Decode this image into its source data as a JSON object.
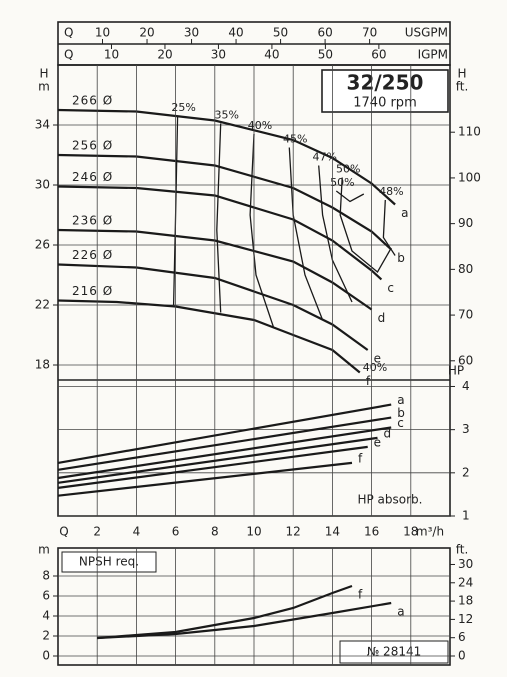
{
  "header": {
    "title": "32/250",
    "speed": "1740 rpm",
    "number": "№ 28141"
  },
  "chart_data": [
    {
      "type": "line",
      "x_label": "Q",
      "y_label": "H",
      "y_unit": "m",
      "y2_label": "H",
      "y2_unit": "ft.",
      "xlim": [
        0,
        20
      ],
      "ylim": [
        17,
        38
      ],
      "yticks": [
        18,
        22,
        26,
        30,
        34
      ],
      "y2lim": [
        55.8,
        124.7
      ],
      "y2ticks": [
        60,
        70,
        80,
        90,
        100,
        110
      ],
      "top_axes": [
        {
          "quantity": "Q",
          "label": "USGPM",
          "lim": [
            0,
            88.06
          ],
          "ticks": [
            10,
            20,
            30,
            40,
            50,
            60,
            70
          ]
        },
        {
          "quantity": "Q",
          "label": "IGPM",
          "lim": [
            0,
            73.3
          ],
          "ticks": [
            10,
            20,
            30,
            40,
            50,
            60
          ]
        }
      ],
      "series": [
        {
          "name": "a",
          "diameter": "266 Ø",
          "color": "#1a1a1a",
          "x": [
            0,
            4,
            8,
            12,
            14,
            16,
            17.2
          ],
          "values": [
            35,
            34.9,
            34.3,
            33,
            31.8,
            30.1,
            28.7
          ]
        },
        {
          "name": "b",
          "diameter": "256 Ø",
          "color": "#1a1a1a",
          "x": [
            0,
            4,
            8,
            12,
            14,
            16,
            17
          ],
          "values": [
            32,
            31.9,
            31.3,
            29.8,
            28.5,
            26.9,
            25.7
          ]
        },
        {
          "name": "c",
          "diameter": "246 Ø",
          "color": "#1a1a1a",
          "x": [
            0,
            4,
            8,
            12,
            14,
            16,
            16.5
          ],
          "values": [
            29.9,
            29.8,
            29.3,
            27.7,
            26.3,
            24.3,
            23.7
          ]
        },
        {
          "name": "d",
          "diameter": "236 Ø",
          "color": "#1a1a1a",
          "x": [
            0,
            4,
            8,
            12,
            14,
            16
          ],
          "values": [
            27,
            26.9,
            26.3,
            24.9,
            23.5,
            21.7
          ]
        },
        {
          "name": "e",
          "diameter": "226 Ø",
          "color": "#1a1a1a",
          "x": [
            0,
            4,
            8,
            12,
            14,
            15.8
          ],
          "values": [
            24.7,
            24.5,
            23.8,
            22,
            20.7,
            19
          ]
        },
        {
          "name": "f",
          "diameter": "216 Ø",
          "color": "#1a1a1a",
          "x": [
            0,
            3,
            6,
            10,
            12,
            14,
            15.4
          ],
          "values": [
            22.3,
            22.2,
            21.9,
            21,
            20,
            19,
            17.5
          ]
        }
      ],
      "efficiency_curves": [
        {
          "label": "25%",
          "x": [
            6.1,
            6,
            5.9
          ],
          "y": [
            34.6,
            28,
            22
          ]
        },
        {
          "label": "35%",
          "x": [
            8.3,
            8.1,
            8.3
          ],
          "y": [
            34.1,
            27,
            21.5
          ]
        },
        {
          "label": "40%",
          "x": [
            10,
            9.8,
            10.1,
            11
          ],
          "y": [
            33.4,
            28,
            24,
            20.5
          ]
        },
        {
          "label": "45%",
          "x": [
            11.8,
            12,
            12.6,
            13.5
          ],
          "y": [
            32.5,
            28,
            24,
            21
          ]
        },
        {
          "label": "47%",
          "x": [
            13.3,
            13.5,
            14,
            15
          ],
          "y": [
            31.3,
            28,
            25,
            22.2
          ]
        },
        {
          "label": "50%",
          "x": [
            14.5,
            14.4,
            15,
            16.3,
            17
          ],
          "y": [
            30.5,
            28,
            25.6,
            24.2,
            25.8
          ]
        },
        {
          "label": "50%",
          "x": [
            14.2,
            14.9,
            15.6
          ],
          "y": [
            29.6,
            28.9,
            29.4
          ]
        },
        {
          "label": "48%",
          "x": [
            16.7,
            16.6,
            17.2
          ],
          "y": [
            29,
            26.5,
            25.3
          ]
        }
      ],
      "annotations": [
        "40%"
      ]
    },
    {
      "type": "line",
      "x_label": "Q",
      "x_unit": "m³/h",
      "y_label": "HP",
      "note": "HP absorb.",
      "xlim": [
        0,
        20
      ],
      "xticks": [
        2,
        4,
        6,
        8,
        10,
        12,
        14,
        16,
        18
      ],
      "ylim": [
        1,
        4.15
      ],
      "yticks": [
        1,
        2,
        3,
        4
      ],
      "series": [
        {
          "name": "a",
          "color": "#1a1a1a",
          "x": [
            0,
            17
          ],
          "values": [
            2.23,
            3.58
          ]
        },
        {
          "name": "b",
          "color": "#1a1a1a",
          "x": [
            0,
            17
          ],
          "values": [
            2.07,
            3.28
          ]
        },
        {
          "name": "c",
          "color": "#1a1a1a",
          "x": [
            0,
            17
          ],
          "values": [
            1.88,
            3.05
          ]
        },
        {
          "name": "d",
          "color": "#1a1a1a",
          "x": [
            0,
            16.3
          ],
          "values": [
            1.77,
            2.81
          ]
        },
        {
          "name": "e",
          "color": "#1a1a1a",
          "x": [
            0,
            15.8
          ],
          "values": [
            1.65,
            2.6
          ]
        },
        {
          "name": "f",
          "color": "#1a1a1a",
          "x": [
            0,
            15
          ],
          "values": [
            1.47,
            2.23
          ]
        }
      ]
    },
    {
      "type": "line",
      "title": "NPSH req.",
      "y_label": "m",
      "y2_label": "ft.",
      "xlim": [
        0,
        20
      ],
      "ylim": [
        -0.9,
        10.8
      ],
      "yticks": [
        0,
        2,
        4,
        6,
        8
      ],
      "y2lim": [
        -2.95,
        35.4
      ],
      "y2ticks": [
        0,
        6,
        12,
        18,
        24,
        30
      ],
      "series": [
        {
          "name": "a",
          "color": "#1a1a1a",
          "x": [
            2,
            6,
            10,
            14,
            17
          ],
          "values": [
            1.8,
            2.2,
            3,
            4.3,
            5.3
          ]
        },
        {
          "name": "f",
          "color": "#1a1a1a",
          "x": [
            2,
            6,
            10,
            12,
            14,
            15
          ],
          "values": [
            1.8,
            2.4,
            3.8,
            4.8,
            6.3,
            7
          ]
        }
      ]
    }
  ]
}
